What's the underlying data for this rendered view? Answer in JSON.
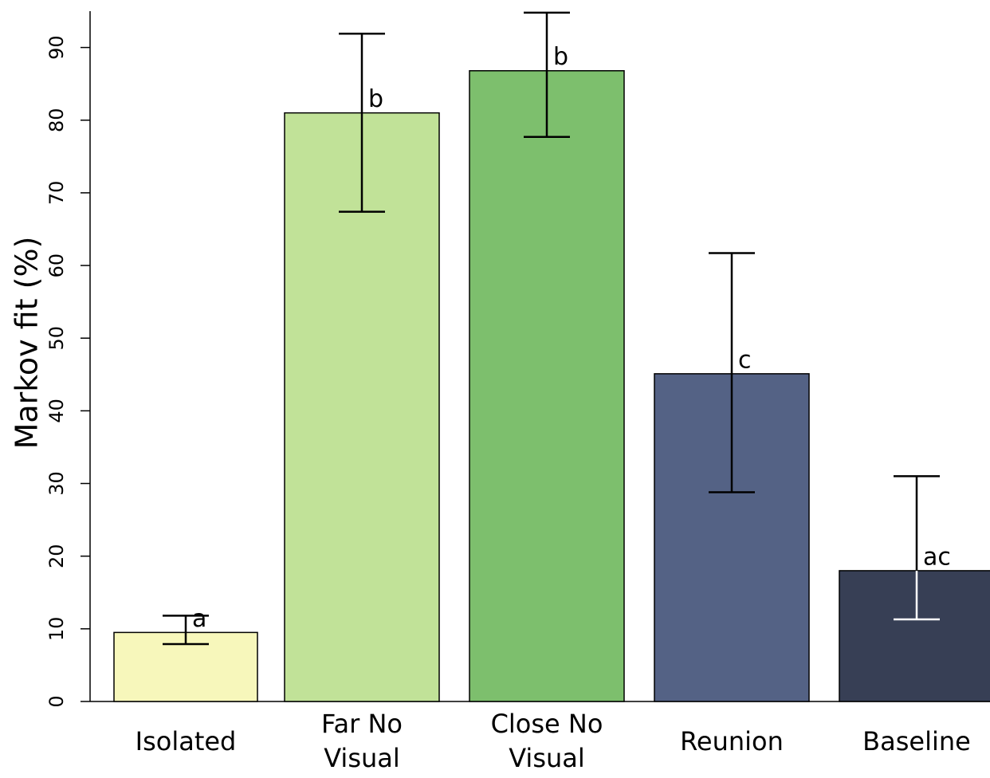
{
  "chart_data": {
    "type": "bar",
    "y_label": "Markov fit (%)",
    "categories": [
      "Isolated",
      "Far No Visual",
      "Close No Visual",
      "Reunion",
      "Baseline"
    ],
    "values": [
      9.5,
      81.0,
      86.8,
      45.1,
      18.0
    ],
    "error_lower": [
      7.9,
      67.4,
      77.7,
      28.8,
      11.3
    ],
    "error_upper": [
      11.8,
      91.9,
      94.8,
      61.7,
      31.0
    ],
    "annotations": [
      "a",
      "b",
      "b",
      "c",
      "ac"
    ],
    "colors": [
      "#f7f7bb",
      "#c1e298",
      "#7dbf6d",
      "#546285",
      "#373f55"
    ],
    "ylim": [
      0,
      95
    ],
    "yticks": [
      0,
      10,
      20,
      30,
      40,
      50,
      60,
      70,
      80,
      90
    ]
  }
}
